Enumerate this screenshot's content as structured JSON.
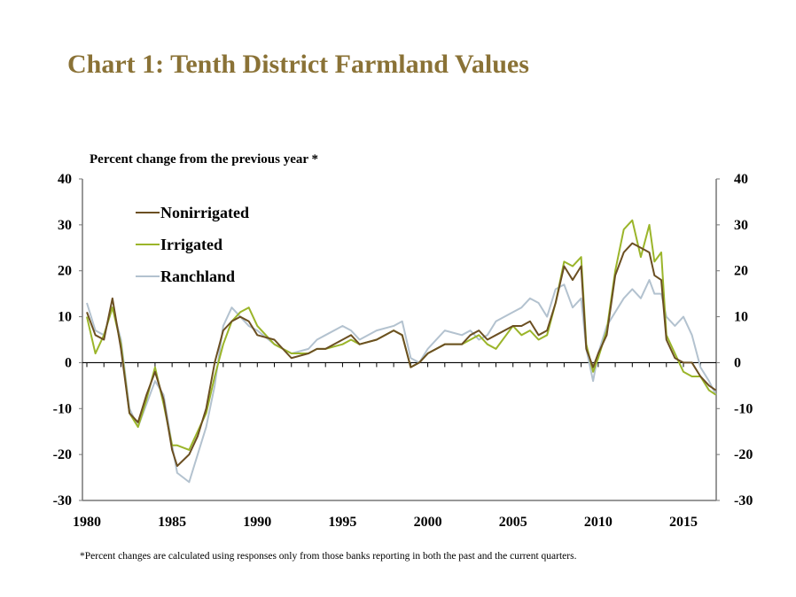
{
  "chart_data": {
    "type": "line",
    "title": "Chart 1: Tenth District Farmland Values",
    "ylabel": "Percent change from the previous year *",
    "footnote": "*Percent changes are calculated using responses only from those banks reporting in both the past and the current quarters.",
    "xlim": [
      1980,
      2016.9
    ],
    "ylim": [
      -30,
      40
    ],
    "xticks": [
      1980,
      1985,
      1990,
      1995,
      2000,
      2005,
      2010,
      2015
    ],
    "yticks": [
      -30,
      -20,
      -10,
      0,
      10,
      20,
      30,
      40
    ],
    "legend_position": "top-left",
    "series": [
      {
        "name": "Nonirrigated",
        "color": "#6b4f22",
        "x": [
          1980,
          1980.5,
          1981,
          1981.5,
          1982,
          1982.5,
          1983,
          1983.5,
          1984,
          1984.5,
          1985,
          1985.3,
          1986,
          1986.5,
          1987,
          1987.5,
          1988,
          1988.5,
          1989,
          1989.5,
          1990,
          1991,
          1992,
          1993,
          1993.5,
          1994,
          1995,
          1995.5,
          1996,
          1997,
          1998,
          1998.5,
          1999,
          1999.5,
          2000,
          2001,
          2002,
          2002.5,
          2003,
          2003.5,
          2004,
          2005,
          2005.5,
          2006,
          2006.5,
          2007,
          2007.5,
          2008,
          2008.5,
          2009,
          2009.3,
          2009.7,
          2010,
          2010.5,
          2011,
          2011.5,
          2012,
          2012.5,
          2013,
          2013.3,
          2013.7,
          2014,
          2014.5,
          2015,
          2015.5,
          2016,
          2016.5,
          2016.9
        ],
        "y": [
          11,
          6,
          5,
          14,
          3,
          -11,
          -13,
          -7,
          -2,
          -8,
          -19,
          -22.5,
          -20,
          -16,
          -10,
          0,
          7,
          9,
          10,
          9,
          6,
          5,
          1,
          2,
          3,
          3,
          5,
          6,
          4,
          5,
          7,
          6,
          -1,
          0,
          2,
          4,
          4,
          6,
          7,
          5,
          6,
          8,
          8,
          9,
          6,
          7,
          13,
          21,
          18,
          21,
          3,
          -1,
          2,
          6,
          19,
          24,
          26,
          25,
          24,
          19,
          18,
          5,
          1,
          0,
          0,
          -3,
          -5,
          -6
        ]
      },
      {
        "name": "Irrigated",
        "color": "#9bb52a",
        "x": [
          1980,
          1980.5,
          1981,
          1981.5,
          1982,
          1982.5,
          1983,
          1983.5,
          1984,
          1984.5,
          1985,
          1985.3,
          1986,
          1986.5,
          1987,
          1987.5,
          1988,
          1988.5,
          1989,
          1989.5,
          1990,
          1991,
          1992,
          1993,
          1993.5,
          1994,
          1995,
          1995.5,
          1996,
          1997,
          1998,
          1998.5,
          1999,
          1999.5,
          2000,
          2001,
          2002,
          2002.5,
          2003,
          2003.5,
          2004,
          2005,
          2005.5,
          2006,
          2006.5,
          2007,
          2007.5,
          2008,
          2008.5,
          2009,
          2009.3,
          2009.7,
          2010,
          2010.5,
          2011,
          2011.5,
          2012,
          2012.5,
          2013,
          2013.3,
          2013.7,
          2014,
          2014.5,
          2015,
          2015.5,
          2016,
          2016.5,
          2016.9
        ],
        "y": [
          10,
          2,
          6,
          12,
          4,
          -11,
          -14,
          -8,
          -1,
          -9,
          -18,
          -18,
          -19,
          -15,
          -11,
          -3,
          4,
          9,
          11,
          12,
          8,
          4,
          2,
          2,
          3,
          3,
          4,
          5,
          4,
          5,
          7,
          6,
          -1,
          0,
          2,
          4,
          4,
          5,
          6,
          4,
          3,
          8,
          6,
          7,
          5,
          6,
          13,
          22,
          21,
          23,
          4,
          -2,
          1,
          7,
          20,
          29,
          31,
          23,
          30,
          22,
          24,
          6,
          2,
          -2,
          -3,
          -3,
          -6,
          -7
        ]
      },
      {
        "name": "Ranchland",
        "color": "#b3c2cf",
        "x": [
          1980,
          1980.5,
          1981,
          1981.5,
          1982,
          1982.5,
          1983,
          1983.5,
          1984,
          1984.5,
          1985,
          1985.3,
          1986,
          1986.5,
          1987,
          1987.5,
          1988,
          1988.5,
          1989,
          1989.5,
          1990,
          1991,
          1992,
          1993,
          1993.5,
          1994,
          1995,
          1995.5,
          1996,
          1997,
          1998,
          1998.5,
          1999,
          1999.5,
          2000,
          2001,
          2002,
          2002.5,
          2003,
          2003.5,
          2004,
          2005,
          2005.5,
          2006,
          2006.5,
          2007,
          2007.5,
          2008,
          2008.5,
          2009,
          2009.3,
          2009.7,
          2010,
          2010.5,
          2011,
          2011.5,
          2012,
          2012.5,
          2013,
          2013.3,
          2013.7,
          2014,
          2014.5,
          2015,
          2015.5,
          2016,
          2016.5,
          2016.9
        ],
        "y": [
          13,
          7,
          6,
          12,
          5,
          -10,
          -14,
          -9,
          -4,
          -7,
          -18,
          -24,
          -26,
          -20,
          -14,
          -5,
          8,
          12,
          10,
          8,
          7,
          4,
          2,
          3,
          5,
          6,
          8,
          7,
          5,
          7,
          8,
          9,
          1,
          0,
          3,
          7,
          6,
          7,
          5,
          6,
          9,
          11,
          12,
          14,
          13,
          10,
          16,
          17,
          12,
          14,
          3,
          -4,
          2,
          8,
          11,
          14,
          16,
          14,
          18,
          15,
          15,
          10,
          8,
          10,
          6,
          -1,
          -4,
          -7
        ]
      }
    ]
  }
}
